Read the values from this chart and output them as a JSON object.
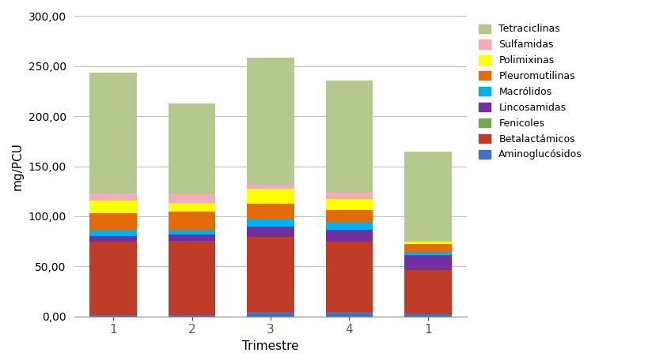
{
  "categories": [
    "1",
    "2",
    "3",
    "4",
    "1"
  ],
  "series": [
    {
      "name": "Aminoglucósidos",
      "color": "#4472C4",
      "values": [
        1.5,
        1.5,
        4.5,
        4.5,
        2.5
      ]
    },
    {
      "name": "Betalactámicos",
      "color": "#BE3C28",
      "values": [
        73,
        74,
        75,
        70,
        44
      ]
    },
    {
      "name": "Fenicoles",
      "color": "#70A850",
      "values": [
        0,
        0,
        0,
        0,
        0
      ]
    },
    {
      "name": "Lincosamidas",
      "color": "#7030A0",
      "values": [
        6,
        6,
        10,
        12,
        15
      ]
    },
    {
      "name": "Macrólidos",
      "color": "#00B0F0",
      "values": [
        5,
        5,
        7,
        7,
        3
      ]
    },
    {
      "name": "Pleuromutilinas",
      "color": "#E36C09",
      "values": [
        18,
        18,
        16,
        13,
        8
      ]
    },
    {
      "name": "Polimixinas",
      "color": "#FFFF00",
      "values": [
        12,
        9,
        15,
        11,
        2
      ]
    },
    {
      "name": "Sulfamidas",
      "color": "#F4ABBA",
      "values": [
        7,
        9,
        4,
        6,
        0
      ]
    },
    {
      "name": "Tetraciclinas",
      "color": "#B5C98E",
      "values": [
        121,
        90,
        127,
        112,
        90
      ]
    }
  ],
  "xlabel": "Trimestre",
  "ylabel": "mg/PCU",
  "ylim": [
    0,
    300
  ],
  "yticks": [
    0,
    50,
    100,
    150,
    200,
    250,
    300
  ],
  "ytick_labels": [
    "0,00",
    "50,00",
    "100,00",
    "150,00",
    "200,00",
    "250,00",
    "300,00"
  ],
  "background_color": "#FFFFFF",
  "grid_color": "#C0C0C0",
  "bar_width": 0.6,
  "figsize": [
    8.2,
    4.61
  ],
  "dpi": 100
}
